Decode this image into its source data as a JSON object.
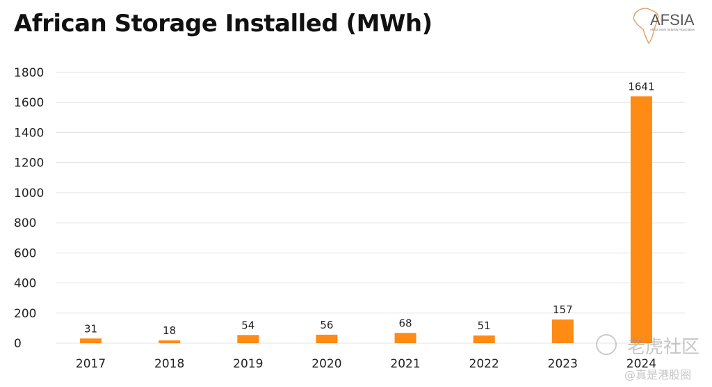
{
  "chart_data": {
    "type": "bar",
    "title": "African Storage Installed (MWh)",
    "categories": [
      "2017",
      "2018",
      "2019",
      "2020",
      "2021",
      "2022",
      "2023",
      "2024"
    ],
    "values": [
      31,
      18,
      54,
      56,
      68,
      51,
      157,
      1641
    ],
    "data_labels": [
      "31",
      "18",
      "54",
      "56",
      "68",
      "51",
      "157",
      "1641"
    ],
    "ylim": [
      0,
      1800
    ],
    "yticks": [
      0,
      200,
      400,
      600,
      800,
      1000,
      1200,
      1400,
      1600,
      1800
    ],
    "grid": true,
    "bar_color": "#FF8A14",
    "xlabel": "",
    "ylabel": ""
  },
  "logo": {
    "text": "AFSIA",
    "subtitle": "Africa Solar Industry Association"
  },
  "watermark": {
    "brand": "老虎社区",
    "author": "@真是港股圈"
  }
}
